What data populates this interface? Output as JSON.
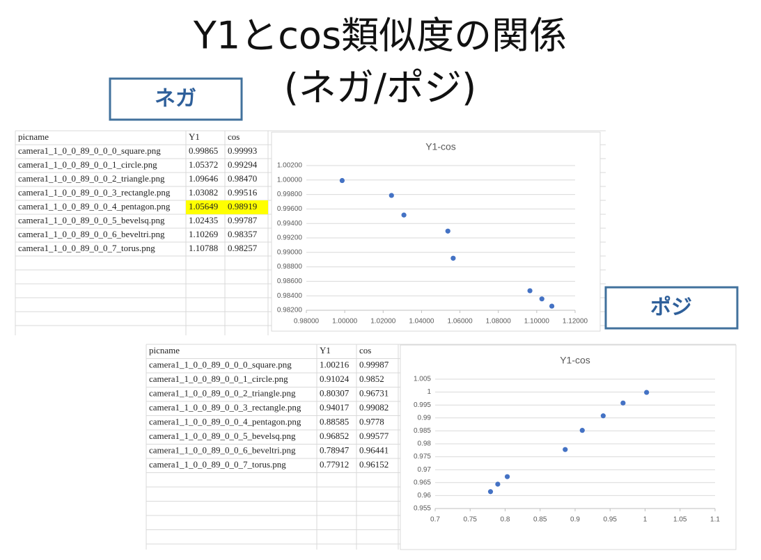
{
  "title": {
    "line1": "Y1とcos類似度の関係",
    "line2": "(ネガ/ポジ)"
  },
  "labels": {
    "negative": "ネガ",
    "positive": "ポジ"
  },
  "tables": [
    {
      "columns": [
        "picname",
        "Y1",
        "cos"
      ],
      "rows": [
        [
          "camera1_1_0_0_89_0_0_0_square.png",
          "0.99865",
          "0.99993"
        ],
        [
          "camera1_1_0_0_89_0_0_1_circle.png",
          "1.05372",
          "0.99294"
        ],
        [
          "camera1_1_0_0_89_0_0_2_triangle.png",
          "1.09646",
          "0.98470"
        ],
        [
          "camera1_1_0_0_89_0_0_3_rectangle.png",
          "1.03082",
          "0.99516"
        ],
        [
          "camera1_1_0_0_89_0_0_4_pentagon.png",
          "1.05649",
          "0.98919"
        ],
        [
          "camera1_1_0_0_89_0_0_5_bevelsq.png",
          "1.02435",
          "0.99787"
        ],
        [
          "camera1_1_0_0_89_0_0_6_beveltri.png",
          "1.10269",
          "0.98357"
        ],
        [
          "camera1_1_0_0_89_0_0_7_torus.png",
          "1.10788",
          "0.98257"
        ]
      ],
      "highlighted_rows": [
        4
      ],
      "highlight_color": "#ffff00"
    },
    {
      "columns": [
        "picname",
        "Y1",
        "cos"
      ],
      "rows": [
        [
          "camera1_1_0_0_89_0_0_0_square.png",
          "1.00216",
          "0.99987"
        ],
        [
          "camera1_1_0_0_89_0_0_1_circle.png",
          "0.91024",
          "0.9852"
        ],
        [
          "camera1_1_0_0_89_0_0_2_triangle.png",
          "0.80307",
          "0.96731"
        ],
        [
          "camera1_1_0_0_89_0_0_3_rectangle.png",
          "0.94017",
          "0.99082"
        ],
        [
          "camera1_1_0_0_89_0_0_4_pentagon.png",
          "0.88585",
          "0.9778"
        ],
        [
          "camera1_1_0_0_89_0_0_5_bevelsq.png",
          "0.96852",
          "0.99577"
        ],
        [
          "camera1_1_0_0_89_0_0_6_beveltri.png",
          "0.78947",
          "0.96441"
        ],
        [
          "camera1_1_0_0_89_0_0_7_torus.png",
          "0.77912",
          "0.96152"
        ]
      ],
      "highlighted_rows": [],
      "highlight_color": "#ffff00"
    }
  ],
  "chart_data": [
    {
      "type": "scatter",
      "title": "Y1-cos",
      "color": "#4472c4",
      "grid": true,
      "x": [
        0.99865,
        1.05372,
        1.09646,
        1.03082,
        1.05649,
        1.02435,
        1.10269,
        1.10788
      ],
      "values": [
        0.99993,
        0.99294,
        0.9847,
        0.99516,
        0.98919,
        0.99787,
        0.98357,
        0.98257
      ],
      "xlim": [
        0.98,
        1.12
      ],
      "xticks": [
        {
          "value": 0.98,
          "label": "0.98000"
        },
        {
          "value": 1.0,
          "label": "1.00000"
        },
        {
          "value": 1.02,
          "label": "1.02000"
        },
        {
          "value": 1.04,
          "label": "1.04000"
        },
        {
          "value": 1.06,
          "label": "1.06000"
        },
        {
          "value": 1.08,
          "label": "1.08000"
        },
        {
          "value": 1.1,
          "label": "1.10000"
        },
        {
          "value": 1.12,
          "label": "1.12000"
        }
      ],
      "ylim": [
        0.982,
        1.002
      ],
      "yticks": [
        {
          "value": 0.982,
          "label": "0.98200"
        },
        {
          "value": 0.984,
          "label": "0.98400"
        },
        {
          "value": 0.986,
          "label": "0.98600"
        },
        {
          "value": 0.988,
          "label": "0.98800"
        },
        {
          "value": 0.99,
          "label": "0.99000"
        },
        {
          "value": 0.992,
          "label": "0.99200"
        },
        {
          "value": 0.994,
          "label": "0.99400"
        },
        {
          "value": 0.996,
          "label": "0.99600"
        },
        {
          "value": 0.998,
          "label": "0.99800"
        },
        {
          "value": 1.0,
          "label": "1.00000"
        },
        {
          "value": 1.002,
          "label": "1.00200"
        }
      ]
    },
    {
      "type": "scatter",
      "title": "Y1-cos",
      "color": "#4472c4",
      "grid": true,
      "x": [
        1.00216,
        0.91024,
        0.80307,
        0.94017,
        0.88585,
        0.96852,
        0.78947,
        0.77912
      ],
      "values": [
        0.99987,
        0.9852,
        0.96731,
        0.99082,
        0.9778,
        0.99577,
        0.96441,
        0.96152
      ],
      "xlim": [
        0.7,
        1.1
      ],
      "xticks": [
        0.7,
        0.75,
        0.8,
        0.85,
        0.9,
        0.95,
        1,
        1.05,
        1.1
      ],
      "ylim": [
        0.955,
        1.005
      ],
      "yticks": [
        0.955,
        0.96,
        0.965,
        0.97,
        0.975,
        0.98,
        0.985,
        0.99,
        0.995,
        1,
        1.005
      ]
    }
  ]
}
